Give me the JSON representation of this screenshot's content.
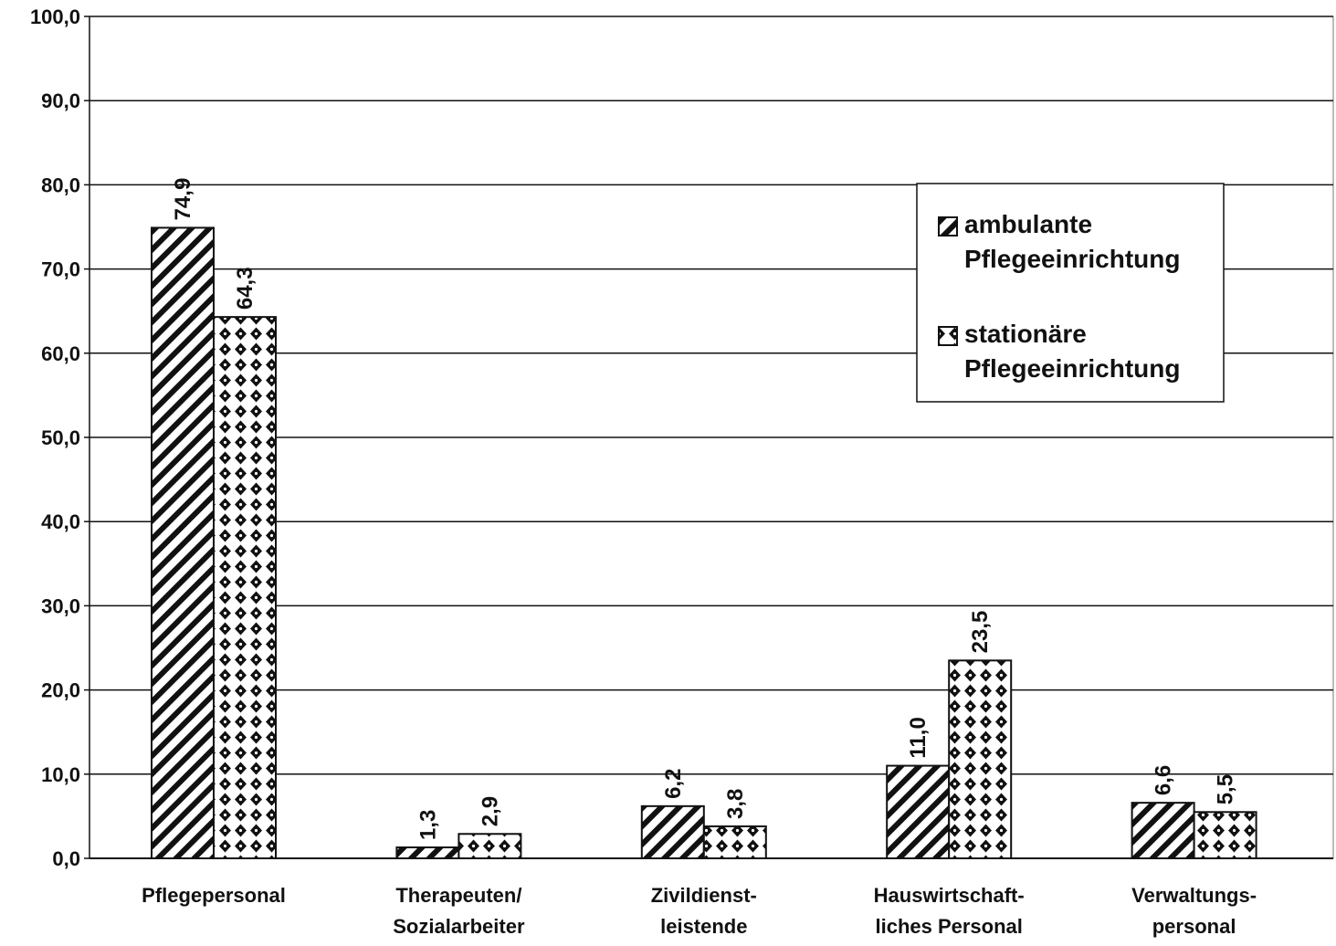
{
  "chart_data": {
    "type": "bar",
    "categories": [
      [
        "Pflegepersonal"
      ],
      [
        "Therapeuten/",
        "Sozialarbeiter"
      ],
      [
        "Zivildienst-",
        "leistende"
      ],
      [
        "Hauswirtschaft-",
        "liches Personal"
      ],
      [
        "Verwaltungs-",
        "personal"
      ]
    ],
    "series": [
      {
        "name_lines": [
          "ambulante",
          "Pflegeeinrichtung"
        ],
        "pattern": "diagonal-hatch",
        "values": [
          74.9,
          1.3,
          6.2,
          11.0,
          6.6
        ],
        "labels": [
          "74,9",
          "1,3",
          "6,2",
          "11,0",
          "6,6"
        ]
      },
      {
        "name_lines": [
          "stationäre",
          "Pflegeeinrichtung"
        ],
        "pattern": "diamond-dots",
        "values": [
          64.3,
          2.9,
          3.8,
          23.5,
          5.5
        ],
        "labels": [
          "64,3",
          "2,9",
          "3,8",
          "23,5",
          "5,5"
        ]
      }
    ],
    "ylim": [
      0,
      100
    ],
    "yticks": [
      "0,0",
      "10,0",
      "20,0",
      "30,0",
      "40,0",
      "50,0",
      "60,0",
      "70,0",
      "80,0",
      "90,0",
      "100,0"
    ],
    "grid": true,
    "legend_position": "top-right",
    "colors": {
      "ink": "#111111",
      "background": "#ffffff"
    }
  }
}
